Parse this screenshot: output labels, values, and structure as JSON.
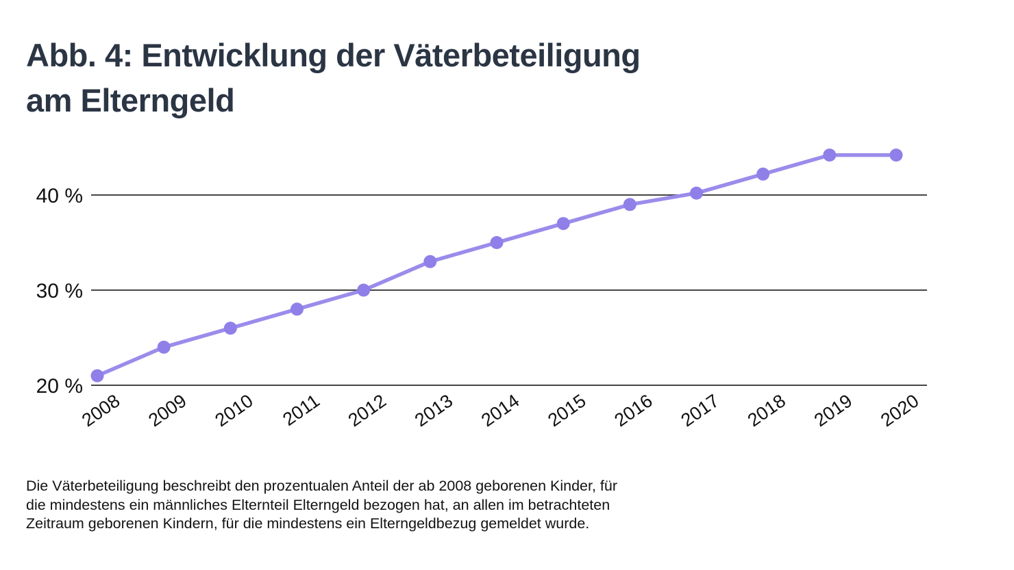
{
  "header": {
    "title_lines": [
      "Abb. 4: Entwicklung der Väterbeteiligung",
      "am Elterngeld"
    ]
  },
  "chart_data": {
    "type": "line",
    "title": "Abb. 4: Entwicklung der Väterbeteiligung am Elterngeld",
    "categories": [
      "2008",
      "2009",
      "2010",
      "2011",
      "2012",
      "2013",
      "2014",
      "2015",
      "2016",
      "2017",
      "2018",
      "2019",
      "2020"
    ],
    "series": [
      {
        "name": "Väterbeteiligung am Elterngeld",
        "values": [
          21,
          24,
          26,
          28,
          30,
          33,
          35,
          37,
          39,
          40.2,
          42.2,
          44.2,
          44.2
        ]
      }
    ],
    "unit": "%",
    "xlabel": "",
    "ylabel": "",
    "ylim": [
      20,
      47.5
    ],
    "yticks": [
      {
        "value": 20,
        "label": "20 %"
      },
      {
        "value": 30,
        "label": "30 %"
      },
      {
        "value": 40,
        "label": "40 %"
      }
    ],
    "grid": true,
    "legend": "none",
    "colors": {
      "line": "#9a8ceb",
      "marker": "#8f7fe8",
      "gridline": "#454545",
      "axis_text": "#111111"
    }
  },
  "caption": {
    "lines": [
      "Die Väterbeteiligung beschreibt den prozentualen Anteil der ab 2008 geborenen Kinder, für",
      "die mindestens ein männliches Elternteil Elterngeld bezogen hat, an allen im betrachteten",
      "Zeitraum geborenen Kindern, für die mindestens ein Elterngeldbezug gemeldet wurde."
    ]
  }
}
